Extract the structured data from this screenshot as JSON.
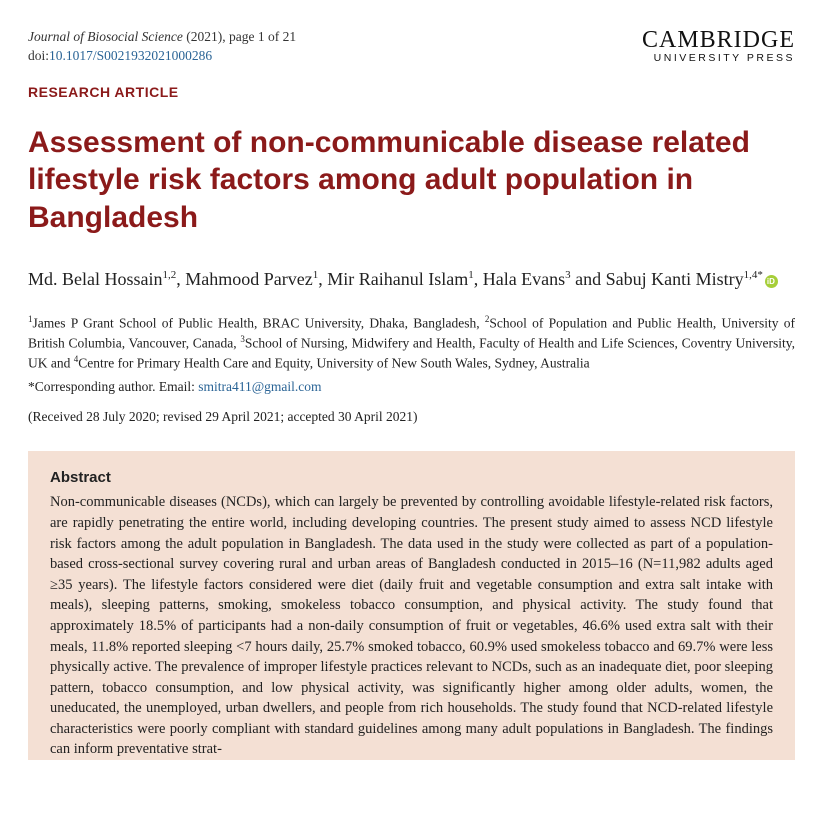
{
  "journal": {
    "name": "Journal of Biosocial Science",
    "year_pages": "(2021), page 1 of 21",
    "doi_label": "doi:",
    "doi": "10.1017/S0021932021000286"
  },
  "publisher": {
    "main": "CAMBRIDGE",
    "sub": "UNIVERSITY PRESS"
  },
  "article_type": "RESEARCH ARTICLE",
  "title": "Assessment of non-communicable disease related lifestyle risk factors among adult population in Bangladesh",
  "authors": [
    {
      "name": "Md. Belal Hossain",
      "aff": "1,2"
    },
    {
      "name": "Mahmood Parvez",
      "aff": "1"
    },
    {
      "name": "Mir Raihanul Islam",
      "aff": "1"
    },
    {
      "name": "Hala Evans",
      "aff": "3"
    },
    {
      "name": "Sabuj Kanti Mistry",
      "aff": "1,4",
      "corresponding": true,
      "orcid": true
    }
  ],
  "affiliations_text": "James P Grant School of Public Health, BRAC University, Dhaka, Bangladesh, ",
  "aff2": "School of Population and Public Health, University of British Columbia, Vancouver, Canada, ",
  "aff3": "School of Nursing, Midwifery and Health, Faculty of Health and Life Sciences, Coventry University, UK and ",
  "aff4": "Centre for Primary Health Care and Equity, University of New South Wales, Sydney, Australia",
  "corresponding_label": "*Corresponding author. Email: ",
  "corresponding_email": "smitra411@gmail.com",
  "dates": "(Received 28 July 2020; revised 29 April 2021; accepted 30 April 2021)",
  "abstract_heading": "Abstract",
  "abstract_text": "Non-communicable diseases (NCDs), which can largely be prevented by controlling avoidable lifestyle-related risk factors, are rapidly penetrating the entire world, including developing countries. The present study aimed to assess NCD lifestyle risk factors among the adult population in Bangladesh. The data used in the study were collected as part of a population-based cross-sectional survey covering rural and urban areas of Bangladesh conducted in 2015–16 (N=11,982 adults aged ≥35 years). The lifestyle factors considered were diet (daily fruit and vegetable consumption and extra salt intake with meals), sleeping patterns, smoking, smokeless tobacco consumption, and physical activity. The study found that approximately 18.5% of participants had a non-daily consumption of fruit or vegetables, 46.6% used extra salt with their meals, 11.8% reported sleeping <7 hours daily, 25.7% smoked tobacco, 60.9% used smokeless tobacco and 69.7% were less physically active. The prevalence of improper lifestyle practices relevant to NCDs, such as an inadequate diet, poor sleeping pattern, tobacco consumption, and low physical activity, was significantly higher among older adults, women, the uneducated, the unemployed, urban dwellers, and people from rich households. The study found that NCD-related lifestyle characteristics were poorly compliant with standard guidelines among many adult populations in Bangladesh. The findings can inform preventative strat-",
  "colors": {
    "maroon": "#8b1a1a",
    "link": "#2a6496",
    "abstract_bg": "#f4e0d4",
    "text": "#222222"
  }
}
